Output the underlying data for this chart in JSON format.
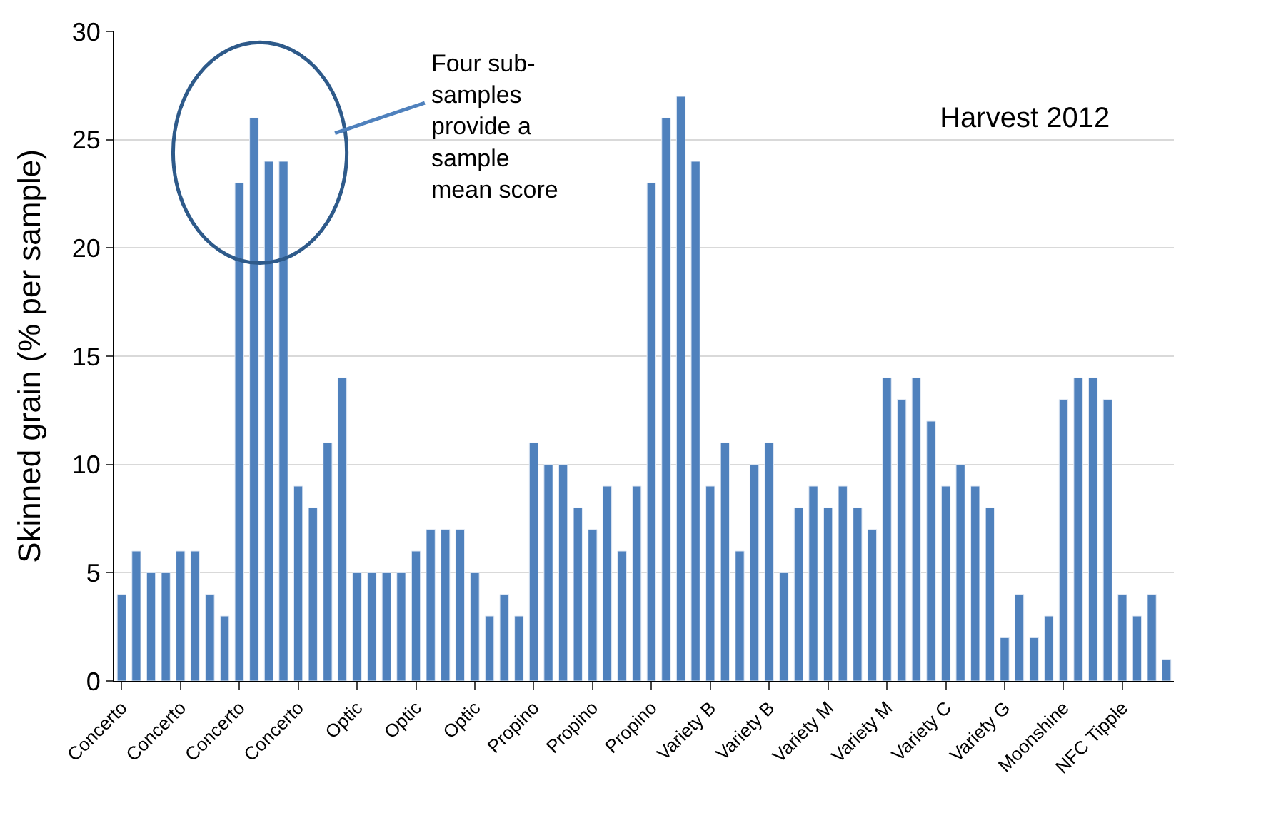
{
  "chart_data": {
    "type": "bar",
    "title": "Harvest 2012",
    "ylabel": "Skinned grain (% per sample)",
    "categories": [
      "Concerto",
      null,
      null,
      null,
      "Concerto",
      null,
      null,
      null,
      "Concerto",
      null,
      null,
      null,
      "Concerto",
      null,
      null,
      null,
      "Optic",
      null,
      null,
      null,
      "Optic",
      null,
      null,
      null,
      "Optic",
      null,
      null,
      null,
      "Propino",
      null,
      null,
      null,
      "Propino",
      null,
      null,
      null,
      "Propino",
      null,
      null,
      null,
      "Variety B",
      null,
      null,
      null,
      "Variety B",
      null,
      null,
      null,
      "Variety M",
      null,
      null,
      null,
      "Variety M",
      null,
      null,
      null,
      "Variety C",
      null,
      null,
      null,
      "Variety G",
      null,
      null,
      null,
      "Moonshine",
      null,
      null,
      null,
      "NFC Tipple",
      null,
      null,
      null
    ],
    "values": [
      4,
      6,
      5,
      5,
      6,
      6,
      4,
      3,
      23,
      26,
      24,
      24,
      9,
      8,
      11,
      14,
      5,
      5,
      5,
      5,
      6,
      7,
      7,
      7,
      5,
      3,
      4,
      3,
      11,
      10,
      10,
      8,
      7,
      9,
      6,
      9,
      23,
      26,
      27,
      24,
      9,
      11,
      6,
      10,
      11,
      5,
      8,
      9,
      8,
      9,
      8,
      7,
      14,
      13,
      14,
      12,
      9,
      10,
      9,
      8,
      2,
      4,
      2,
      3,
      13,
      14,
      14,
      13,
      4,
      3,
      4,
      1
    ],
    "color": "#4f81bd",
    "ylim": [
      0,
      30
    ],
    "yticks": [
      0,
      5,
      10,
      15,
      20,
      25,
      30
    ],
    "grid": "y",
    "annotations": [
      "Four sub-\nsamples\nprovide a\nsample\nmean score"
    ]
  }
}
